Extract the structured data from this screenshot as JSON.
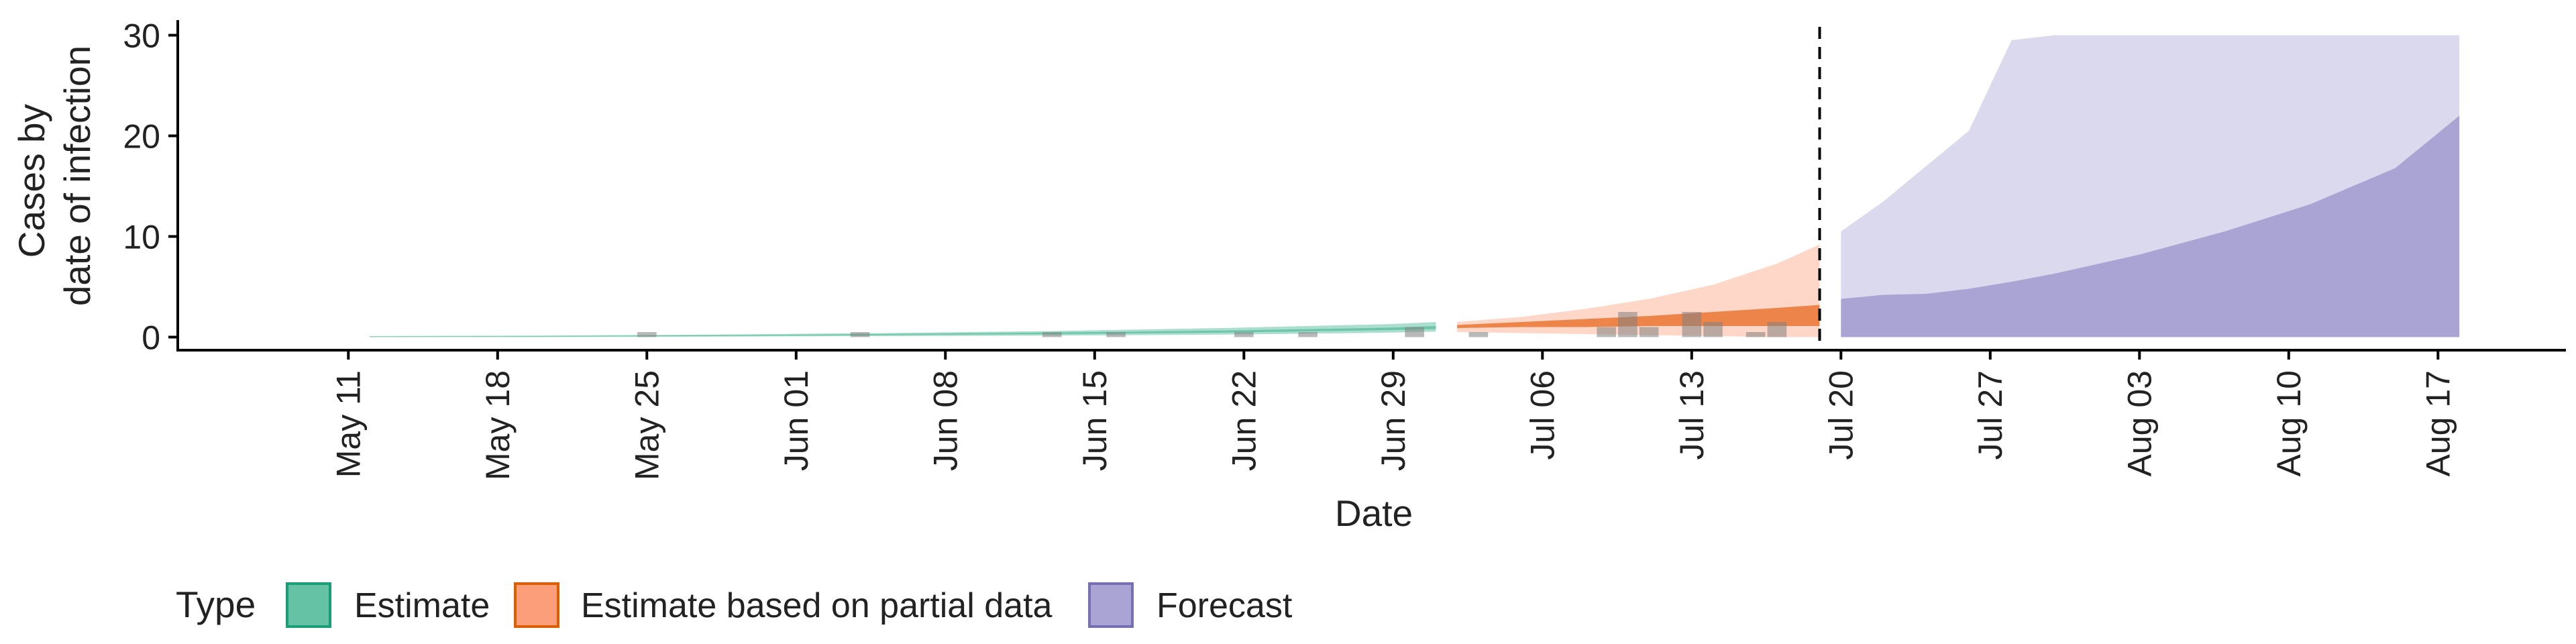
{
  "chart_data": {
    "type": "area",
    "title": "",
    "xlabel": "Date",
    "ylabel": [
      "Cases by",
      "date of infection"
    ],
    "x_range": [
      "2020-05-03",
      "2020-08-23"
    ],
    "ylim": [
      -1.3,
      31.5
    ],
    "yticks": [
      0,
      10,
      20,
      30
    ],
    "xtick_dates": [
      "2020-05-11",
      "2020-05-18",
      "2020-05-25",
      "2020-06-01",
      "2020-06-08",
      "2020-06-15",
      "2020-06-22",
      "2020-06-29",
      "2020-07-06",
      "2020-07-13",
      "2020-07-20",
      "2020-07-27",
      "2020-08-03",
      "2020-08-10",
      "2020-08-17"
    ],
    "xtick_labels": [
      "May 11",
      "May 18",
      "May 25",
      "Jun 01",
      "Jun 08",
      "Jun 15",
      "Jun 22",
      "Jun 29",
      "Jul 06",
      "Jul 13",
      "Jul 20",
      "Jul 27",
      "Aug 03",
      "Aug 10",
      "Aug 17"
    ],
    "vline_date": "2020-07-19",
    "vline_style": "dashed",
    "grid": false,
    "legend": {
      "title": "Type",
      "position": "bottom",
      "items": [
        {
          "label": "Estimate",
          "fill": "#66c2a5",
          "stroke": "#1b9e77"
        },
        {
          "label": "Estimate based on partial data",
          "fill": "#fc8d62",
          "stroke": "#d95f02"
        },
        {
          "label": "Forecast",
          "fill": "#a9a4d4",
          "stroke": "#7570b3"
        }
      ]
    },
    "series": [
      {
        "name": "Estimate",
        "color": "#1b9e77",
        "x": [
          "2020-05-12",
          "2020-05-20",
          "2020-05-28",
          "2020-06-05",
          "2020-06-13",
          "2020-06-21",
          "2020-06-29",
          "2020-07-01"
        ],
        "outer_low": [
          0.0,
          0.0,
          0.05,
          0.1,
          0.15,
          0.25,
          0.45,
          0.55
        ],
        "outer_high": [
          0.1,
          0.15,
          0.25,
          0.4,
          0.6,
          0.9,
          1.3,
          1.5
        ],
        "inner_low": [
          0.02,
          0.05,
          0.1,
          0.2,
          0.3,
          0.45,
          0.7,
          0.8
        ],
        "inner_high": [
          0.06,
          0.1,
          0.18,
          0.3,
          0.45,
          0.65,
          0.95,
          1.1
        ]
      },
      {
        "name": "Estimate based on partial data",
        "color": "#d95f02",
        "x": [
          "2020-07-02",
          "2020-07-05",
          "2020-07-08",
          "2020-07-11",
          "2020-07-14",
          "2020-07-17",
          "2020-07-19"
        ],
        "outer_low": [
          0.5,
          0.4,
          0.3,
          0.2,
          0.1,
          0.0,
          0.0
        ],
        "outer_high": [
          1.5,
          2.0,
          2.8,
          3.8,
          5.2,
          7.3,
          9.2
        ],
        "inner_low": [
          0.9,
          1.0,
          1.0,
          1.1,
          1.1,
          1.1,
          1.1
        ],
        "inner_high": [
          1.2,
          1.5,
          1.8,
          2.1,
          2.5,
          2.9,
          3.2
        ]
      },
      {
        "name": "Forecast",
        "color": "#7570b3",
        "x": [
          "2020-07-20",
          "2020-07-22",
          "2020-07-24",
          "2020-07-26",
          "2020-07-28",
          "2020-07-30",
          "2020-08-03",
          "2020-08-07",
          "2020-08-11",
          "2020-08-15",
          "2020-08-18"
        ],
        "outer_low": [
          0.8,
          0.8,
          0,
          0,
          0,
          0,
          0,
          0,
          0,
          0,
          0
        ],
        "outer_high": [
          10.5,
          13.5,
          17,
          20.5,
          29.5,
          30,
          30,
          30,
          30,
          30,
          30
        ],
        "inner_low": [
          0,
          0,
          0,
          0,
          0,
          0,
          0,
          0,
          0,
          0,
          0
        ],
        "inner_high": [
          3.8,
          4.2,
          4.3,
          4.8,
          5.5,
          6.3,
          8.2,
          10.5,
          13.2,
          16.8,
          22
        ]
      }
    ],
    "observed_cases": {
      "color": "#808080",
      "points": [
        {
          "x": "2020-05-25",
          "y": 0.5
        },
        {
          "x": "2020-06-04",
          "y": 0.5
        },
        {
          "x": "2020-06-13",
          "y": 0.5
        },
        {
          "x": "2020-06-16",
          "y": 0.5
        },
        {
          "x": "2020-06-22",
          "y": 0.5
        },
        {
          "x": "2020-06-25",
          "y": 0.5
        },
        {
          "x": "2020-06-30",
          "y": 1
        },
        {
          "x": "2020-07-03",
          "y": 0.5
        },
        {
          "x": "2020-07-09",
          "y": 1
        },
        {
          "x": "2020-07-10",
          "y": 2.5
        },
        {
          "x": "2020-07-11",
          "y": 1
        },
        {
          "x": "2020-07-13",
          "y": 2.5
        },
        {
          "x": "2020-07-14",
          "y": 1.5
        },
        {
          "x": "2020-07-16",
          "y": 0.5
        },
        {
          "x": "2020-07-17",
          "y": 1.5
        }
      ]
    }
  }
}
